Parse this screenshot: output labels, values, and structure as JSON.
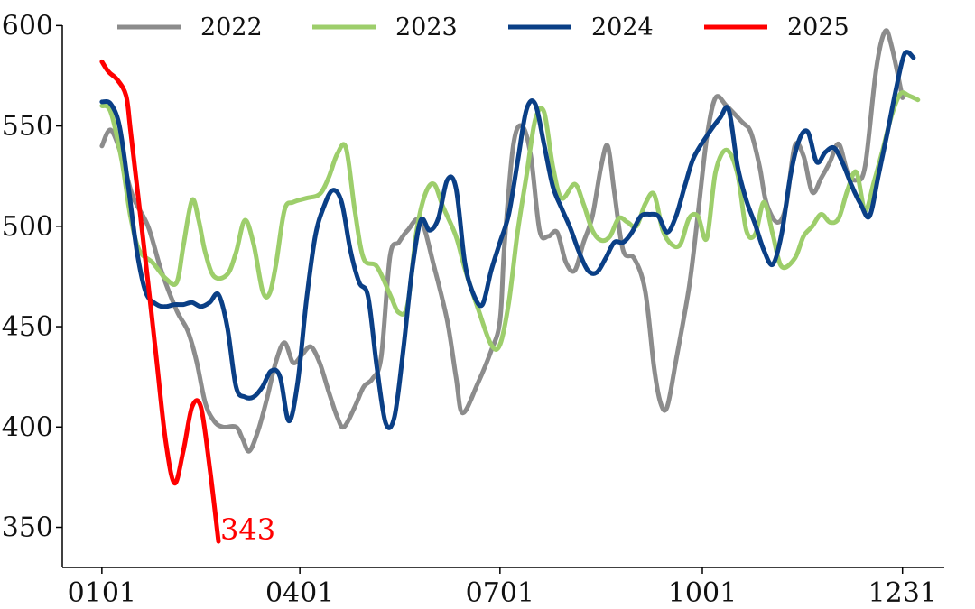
{
  "chart_data": {
    "type": "line",
    "title": "",
    "xlabel": "",
    "ylabel": "",
    "x_ticks": [
      {
        "label": "0101",
        "day": 1
      },
      {
        "label": "0401",
        "day": 91
      },
      {
        "label": "0701",
        "day": 182
      },
      {
        "label": "1001",
        "day": 274
      },
      {
        "label": "1231",
        "day": 365
      }
    ],
    "xlim": [
      -17,
      384
    ],
    "ylim": [
      330,
      606
    ],
    "y_ticks": [
      350,
      400,
      450,
      500,
      550,
      600
    ],
    "legend_position": "top",
    "grid": false,
    "series": [
      {
        "name": "2022",
        "color": "#8c8c8c",
        "points": [
          [
            1,
            540
          ],
          [
            5,
            548
          ],
          [
            10,
            535
          ],
          [
            15,
            515
          ],
          [
            22,
            500
          ],
          [
            28,
            478
          ],
          [
            35,
            458
          ],
          [
            40,
            448
          ],
          [
            44,
            433
          ],
          [
            48,
            412
          ],
          [
            52,
            403
          ],
          [
            56,
            400
          ],
          [
            62,
            400
          ],
          [
            65,
            394
          ],
          [
            68,
            388
          ],
          [
            72,
            398
          ],
          [
            76,
            414
          ],
          [
            80,
            432
          ],
          [
            84,
            442
          ],
          [
            88,
            432
          ],
          [
            92,
            436
          ],
          [
            96,
            440
          ],
          [
            100,
            432
          ],
          [
            104,
            418
          ],
          [
            108,
            405
          ],
          [
            111,
            400
          ],
          [
            116,
            410
          ],
          [
            120,
            420
          ],
          [
            124,
            424
          ],
          [
            128,
            435
          ],
          [
            132,
            485
          ],
          [
            136,
            492
          ],
          [
            140,
            498
          ],
          [
            146,
            503
          ],
          [
            152,
            480
          ],
          [
            158,
            453
          ],
          [
            162,
            425
          ],
          [
            165,
            407
          ],
          [
            172,
            422
          ],
          [
            178,
            438
          ],
          [
            182,
            453
          ],
          [
            184,
            490
          ],
          [
            188,
            540
          ],
          [
            192,
            550
          ],
          [
            196,
            535
          ],
          [
            200,
            498
          ],
          [
            204,
            495
          ],
          [
            208,
            497
          ],
          [
            212,
            482
          ],
          [
            216,
            478
          ],
          [
            220,
            492
          ],
          [
            224,
            505
          ],
          [
            228,
            530
          ],
          [
            231,
            540
          ],
          [
            234,
            517
          ],
          [
            238,
            488
          ],
          [
            243,
            484
          ],
          [
            248,
            468
          ],
          [
            252,
            430
          ],
          [
            255,
            412
          ],
          [
            258,
            410
          ],
          [
            262,
            433
          ],
          [
            268,
            470
          ],
          [
            272,
            506
          ],
          [
            276,
            544
          ],
          [
            280,
            564
          ],
          [
            285,
            560
          ],
          [
            292,
            552
          ],
          [
            296,
            547
          ],
          [
            300,
            530
          ],
          [
            303,
            512
          ],
          [
            308,
            502
          ],
          [
            312,
            510
          ],
          [
            316,
            540
          ],
          [
            320,
            535
          ],
          [
            324,
            517
          ],
          [
            328,
            524
          ],
          [
            332,
            532
          ],
          [
            336,
            541
          ],
          [
            340,
            527
          ],
          [
            344,
            523
          ],
          [
            348,
            530
          ],
          [
            353,
            578
          ],
          [
            357,
            597
          ],
          [
            360,
            590
          ],
          [
            365,
            564
          ]
        ]
      },
      {
        "name": "2023",
        "color": "#9dce6b",
        "points": [
          [
            1,
            560
          ],
          [
            5,
            557
          ],
          [
            10,
            533
          ],
          [
            14,
            505
          ],
          [
            18,
            488
          ],
          [
            24,
            482
          ],
          [
            30,
            474
          ],
          [
            35,
            472
          ],
          [
            38,
            490
          ],
          [
            42,
            513
          ],
          [
            45,
            503
          ],
          [
            48,
            487
          ],
          [
            52,
            475
          ],
          [
            58,
            476
          ],
          [
            62,
            487
          ],
          [
            66,
            503
          ],
          [
            70,
            491
          ],
          [
            74,
            468
          ],
          [
            77,
            466
          ],
          [
            80,
            480
          ],
          [
            84,
            508
          ],
          [
            88,
            512
          ],
          [
            94,
            514
          ],
          [
            100,
            516
          ],
          [
            104,
            524
          ],
          [
            108,
            536
          ],
          [
            112,
            539
          ],
          [
            116,
            508
          ],
          [
            120,
            484
          ],
          [
            126,
            480
          ],
          [
            132,
            466
          ],
          [
            136,
            457
          ],
          [
            140,
            461
          ],
          [
            144,
            497
          ],
          [
            148,
            516
          ],
          [
            152,
            521
          ],
          [
            156,
            510
          ],
          [
            162,
            495
          ],
          [
            166,
            479
          ],
          [
            172,
            459
          ],
          [
            178,
            441
          ],
          [
            182,
            441
          ],
          [
            186,
            462
          ],
          [
            190,
            497
          ],
          [
            194,
            525
          ],
          [
            198,
            553
          ],
          [
            202,
            557
          ],
          [
            206,
            530
          ],
          [
            210,
            514
          ],
          [
            216,
            521
          ],
          [
            220,
            511
          ],
          [
            224,
            498
          ],
          [
            228,
            493
          ],
          [
            232,
            495
          ],
          [
            236,
            504
          ],
          [
            240,
            502
          ],
          [
            244,
            500
          ],
          [
            248,
            511
          ],
          [
            252,
            516
          ],
          [
            256,
            498
          ],
          [
            260,
            491
          ],
          [
            264,
            491
          ],
          [
            268,
            504
          ],
          [
            272,
            505
          ],
          [
            276,
            494
          ],
          [
            280,
            527
          ],
          [
            285,
            538
          ],
          [
            290,
            526
          ],
          [
            294,
            498
          ],
          [
            298,
            496
          ],
          [
            302,
            512
          ],
          [
            306,
            496
          ],
          [
            310,
            480
          ],
          [
            316,
            484
          ],
          [
            320,
            495
          ],
          [
            324,
            500
          ],
          [
            328,
            506
          ],
          [
            332,
            502
          ],
          [
            336,
            504
          ],
          [
            340,
            518
          ],
          [
            344,
            527
          ],
          [
            348,
            508
          ],
          [
            352,
            522
          ],
          [
            356,
            538
          ],
          [
            360,
            555
          ],
          [
            364,
            566
          ],
          [
            368,
            565
          ],
          [
            372,
            563
          ]
        ]
      },
      {
        "name": "2024",
        "color": "#0a3f86",
        "points": [
          [
            1,
            562
          ],
          [
            5,
            561
          ],
          [
            9,
            550
          ],
          [
            13,
            520
          ],
          [
            17,
            487
          ],
          [
            21,
            467
          ],
          [
            26,
            461
          ],
          [
            30,
            460
          ],
          [
            34,
            461
          ],
          [
            38,
            461
          ],
          [
            42,
            462
          ],
          [
            46,
            460
          ],
          [
            50,
            462
          ],
          [
            54,
            466
          ],
          [
            58,
            450
          ],
          [
            62,
            420
          ],
          [
            66,
            415
          ],
          [
            70,
            415
          ],
          [
            74,
            420
          ],
          [
            78,
            428
          ],
          [
            82,
            425
          ],
          [
            86,
            403
          ],
          [
            90,
            422
          ],
          [
            94,
            463
          ],
          [
            98,
            495
          ],
          [
            102,
            510
          ],
          [
            106,
            518
          ],
          [
            110,
            512
          ],
          [
            114,
            488
          ],
          [
            118,
            472
          ],
          [
            122,
            465
          ],
          [
            126,
            430
          ],
          [
            130,
            402
          ],
          [
            134,
            405
          ],
          [
            138,
            438
          ],
          [
            142,
            478
          ],
          [
            146,
            503
          ],
          [
            150,
            498
          ],
          [
            154,
            504
          ],
          [
            158,
            523
          ],
          [
            162,
            519
          ],
          [
            166,
            482
          ],
          [
            170,
            466
          ],
          [
            174,
            461
          ],
          [
            178,
            478
          ],
          [
            182,
            492
          ],
          [
            186,
            506
          ],
          [
            190,
            532
          ],
          [
            194,
            558
          ],
          [
            198,
            561
          ],
          [
            202,
            541
          ],
          [
            206,
            520
          ],
          [
            210,
            509
          ],
          [
            214,
            499
          ],
          [
            218,
            487
          ],
          [
            222,
            478
          ],
          [
            226,
            477
          ],
          [
            230,
            484
          ],
          [
            234,
            492
          ],
          [
            238,
            492
          ],
          [
            242,
            497
          ],
          [
            246,
            505
          ],
          [
            250,
            506
          ],
          [
            254,
            505
          ],
          [
            258,
            497
          ],
          [
            262,
            505
          ],
          [
            266,
            520
          ],
          [
            270,
            534
          ],
          [
            276,
            545
          ],
          [
            282,
            554
          ],
          [
            286,
            558
          ],
          [
            290,
            530
          ],
          [
            294,
            513
          ],
          [
            298,
            501
          ],
          [
            302,
            488
          ],
          [
            306,
            481
          ],
          [
            310,
            496
          ],
          [
            314,
            525
          ],
          [
            318,
            543
          ],
          [
            322,
            547
          ],
          [
            326,
            532
          ],
          [
            330,
            537
          ],
          [
            334,
            539
          ],
          [
            338,
            531
          ],
          [
            342,
            520
          ],
          [
            346,
            511
          ],
          [
            350,
            505
          ],
          [
            354,
            525
          ],
          [
            358,
            546
          ],
          [
            362,
            568
          ],
          [
            366,
            586
          ],
          [
            370,
            584
          ]
        ]
      },
      {
        "name": "2025",
        "color": "#ff0000",
        "points": [
          [
            1,
            582
          ],
          [
            4,
            577
          ],
          [
            8,
            573
          ],
          [
            12,
            565
          ],
          [
            14,
            548
          ],
          [
            18,
            510
          ],
          [
            22,
            472
          ],
          [
            26,
            432
          ],
          [
            30,
            393
          ],
          [
            34,
            372
          ],
          [
            38,
            388
          ],
          [
            42,
            410
          ],
          [
            46,
            410
          ],
          [
            50,
            380
          ],
          [
            54,
            343
          ]
        ],
        "end_label": "343"
      }
    ]
  }
}
